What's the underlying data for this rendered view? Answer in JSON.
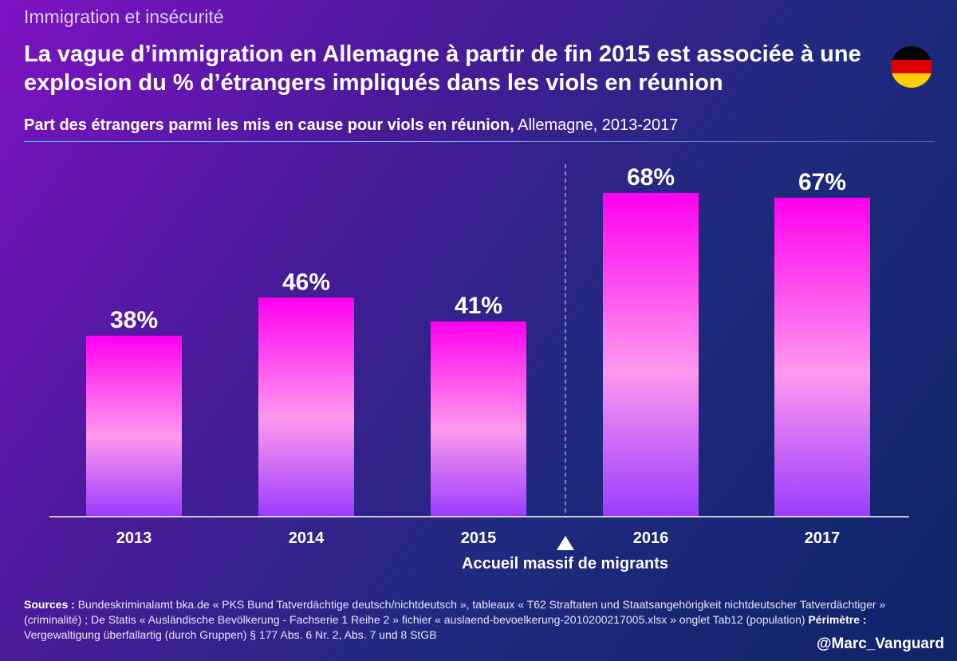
{
  "header": {
    "category": "Immigration et insécurité",
    "title": "La vague d’immigration en Allemagne à partir de fin 2015 est associée à une explosion du % d’étrangers impliqués dans les viols en réunion",
    "subtitle_bold": "Part des étrangers parmi les mis en cause pour viols en réunion,",
    "subtitle_rest": " Allemagne, 2013-2017"
  },
  "flag": {
    "country": "Germany",
    "colors": [
      "#000000",
      "#dd0000",
      "#ffce00"
    ]
  },
  "chart_data": {
    "type": "bar",
    "title": "Part des étrangers parmi les mis en cause pour viols en réunion, Allemagne, 2013-2017",
    "categories": [
      "2013",
      "2014",
      "2015",
      "2016",
      "2017"
    ],
    "values": [
      38,
      46,
      41,
      68,
      67
    ],
    "value_labels": [
      "38%",
      "46%",
      "41%",
      "68%",
      "67%"
    ],
    "unit": "%",
    "xlabel": "",
    "ylabel": "",
    "ylim": [
      0,
      70
    ],
    "grid": false,
    "annotation": {
      "text": "Accueil massif de migrants",
      "between": [
        "2015",
        "2016"
      ],
      "marker": "▲"
    },
    "bar_colors": [
      "#ff00f0",
      "#ff99ee",
      "#9b3cff"
    ]
  },
  "footer": {
    "sources_label": "Sources :",
    "sources_text": " Bundeskriminalamt bka.de « PKS Bund Tatverdächtige deutsch/nichtdeutsch », tableaux « T62 Straftaten und Staatsangehörigkeit nichtdeutscher Tatverdächtiger » (criminalité) ; De Statis « Ausländische Bevölkerung - Fachserie 1 Reihe 2 » fichier « auslaend-bevoelkerung-2010200217005.xlsx » onglet Tab12 (population) ",
    "perimetre_label": "Périmètre :",
    "perimetre_text": " Vergewaltigung überfallartig (durch Gruppen) § 177 Abs. 6 Nr. 2, Abs. 7 und 8 StGB",
    "handle": "@Marc_Vanguard"
  }
}
